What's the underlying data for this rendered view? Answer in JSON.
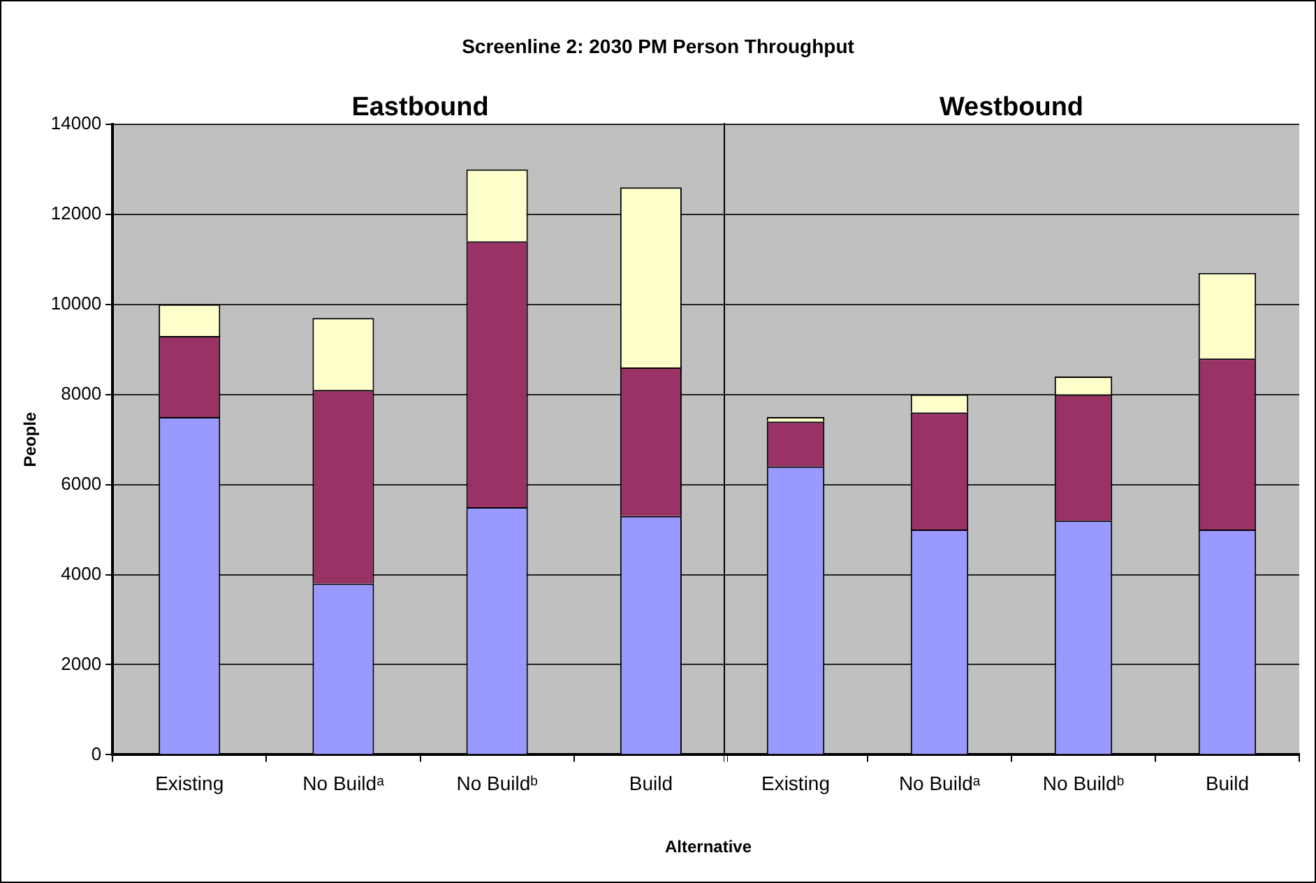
{
  "chart_data": [
    {
      "type": "bar",
      "title": "Screenline 2: 2030 PM Person Throughput",
      "xlabel": "Alternative",
      "ylabel": "People",
      "categories": [
        "Existing",
        "No Buildᵃ",
        "No Buildᵇ",
        "Build"
      ],
      "stacked": true,
      "series": [
        {
          "color": "#9999ff",
          "values": [
            7500,
            3800,
            5500,
            5300
          ]
        },
        {
          "color": "#993366",
          "values": [
            1800,
            4300,
            5900,
            3300
          ]
        },
        {
          "color": "#ffffcc",
          "values": [
            700,
            1600,
            1600,
            4000
          ]
        }
      ],
      "ylim": [
        0,
        14000
      ],
      "yticks": [
        0,
        2000,
        4000,
        6000,
        8000,
        10000,
        12000,
        14000
      ],
      "grid": "y",
      "legend": false,
      "annotations": [
        "Eastbound"
      ]
    },
    {
      "type": "bar",
      "categories": [
        "Existing",
        "No Buildᵃ",
        "No Buildᵇ",
        "Build"
      ],
      "stacked": true,
      "series": [
        {
          "color": "#9999ff",
          "values": [
            6400,
            5000,
            5200,
            5000
          ]
        },
        {
          "color": "#993366",
          "values": [
            1000,
            2600,
            2800,
            3800
          ]
        },
        {
          "color": "#ffffcc",
          "values": [
            100,
            400,
            400,
            1900
          ]
        }
      ],
      "ylim": [
        0,
        14000
      ],
      "yticks": [
        0,
        2000,
        4000,
        6000,
        8000,
        10000,
        12000,
        14000
      ],
      "grid": "y",
      "legend": false,
      "tick_labels": "x",
      "annotations": [
        "Westbound"
      ]
    }
  ]
}
